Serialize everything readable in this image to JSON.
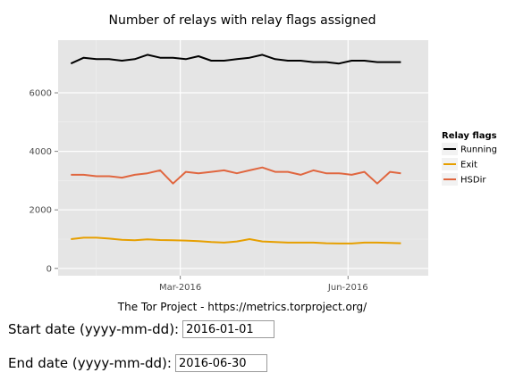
{
  "chart_data": {
    "type": "line",
    "title": "Number of relays with relay flags assigned",
    "caption": "The Tor Project - https://metrics.torproject.org/",
    "xlabel": "",
    "ylabel": "",
    "x_ticks": [
      "Mar-2016",
      "Jun-2016"
    ],
    "x_tick_dates": [
      "2016-03-01",
      "2016-06-01"
    ],
    "xlim": [
      "2015-12-25",
      "2016-07-15"
    ],
    "y_ticks": [
      0,
      2000,
      4000,
      6000
    ],
    "ylim": [
      -250,
      7800
    ],
    "grid": true,
    "legend": {
      "title": "Relay flags",
      "placement": "right",
      "entries": [
        "Running",
        "Exit",
        "HSDir"
      ]
    },
    "x": [
      "2016-01-01",
      "2016-01-08",
      "2016-01-15",
      "2016-01-22",
      "2016-01-29",
      "2016-02-05",
      "2016-02-12",
      "2016-02-19",
      "2016-02-26",
      "2016-03-04",
      "2016-03-11",
      "2016-03-18",
      "2016-03-25",
      "2016-04-01",
      "2016-04-08",
      "2016-04-15",
      "2016-04-22",
      "2016-04-29",
      "2016-05-06",
      "2016-05-13",
      "2016-05-20",
      "2016-05-27",
      "2016-06-03",
      "2016-06-10",
      "2016-06-17",
      "2016-06-24",
      "2016-06-30"
    ],
    "series": [
      {
        "name": "Running",
        "color": "#000000",
        "values": [
          7000,
          7200,
          7150,
          7150,
          7100,
          7150,
          7300,
          7200,
          7200,
          7150,
          7250,
          7100,
          7100,
          7150,
          7200,
          7300,
          7150,
          7100,
          7100,
          7050,
          7050,
          7000,
          7100,
          7100,
          7050,
          7050,
          7050
        ]
      },
      {
        "name": "Exit",
        "color": "#e69f00",
        "values": [
          1000,
          1050,
          1050,
          1020,
          980,
          960,
          990,
          970,
          960,
          950,
          930,
          900,
          880,
          920,
          1000,
          920,
          900,
          880,
          880,
          880,
          860,
          850,
          850,
          880,
          880,
          870,
          860
        ]
      },
      {
        "name": "HSDir",
        "color": "#e0663f",
        "values": [
          3200,
          3200,
          3150,
          3150,
          3100,
          3200,
          3250,
          3350,
          2900,
          3300,
          3250,
          3300,
          3350,
          3250,
          3350,
          3450,
          3300,
          3300,
          3200,
          3350,
          3250,
          3250,
          3200,
          3300,
          2900,
          3300,
          3250
        ]
      }
    ]
  },
  "form": {
    "start_label": "Start date (yyyy-mm-dd):",
    "start_value": "2016-01-01",
    "end_label": "End date (yyyy-mm-dd):",
    "end_value": "2016-06-30"
  }
}
